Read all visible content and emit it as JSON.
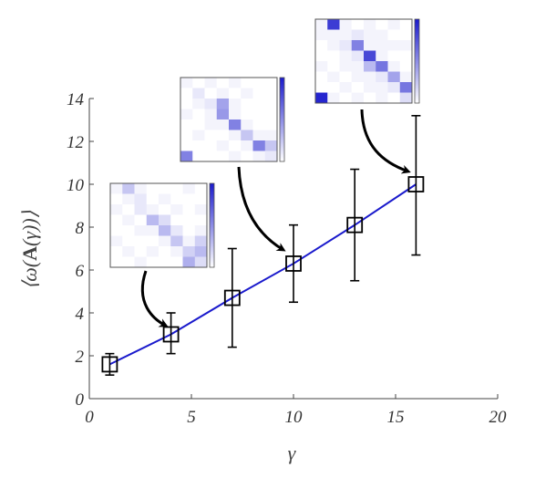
{
  "chart_data": {
    "type": "line",
    "xlabel": "γ",
    "ylabel": "⟨ω(A(γ))⟩",
    "xlim": [
      0,
      20
    ],
    "ylim": [
      0,
      14
    ],
    "xticks": [
      "0",
      "5",
      "10",
      "15",
      "20"
    ],
    "yticks": [
      "0",
      "2",
      "4",
      "6",
      "8",
      "10",
      "12",
      "14"
    ],
    "grid": false,
    "series": [
      {
        "color": "#1a1acc",
        "marker": "square",
        "points": [
          {
            "x": 1,
            "y": 1.6,
            "err_low": 1.1,
            "err_high": 2.1
          },
          {
            "x": 4,
            "y": 3.0,
            "err_low": 2.1,
            "err_high": 4.0
          },
          {
            "x": 7,
            "y": 4.7,
            "err_low": 2.4,
            "err_high": 7.0
          },
          {
            "x": 10,
            "y": 6.3,
            "err_low": 4.5,
            "err_high": 8.1
          },
          {
            "x": 13,
            "y": 8.1,
            "err_low": 5.5,
            "err_high": 10.7
          },
          {
            "x": 16,
            "y": 10.0,
            "err_low": 6.7,
            "err_high": 13.2
          }
        ]
      }
    ],
    "insets": [
      {
        "target_x": 4,
        "matrix": [
          [
            0.05,
            0.25,
            0.05,
            0.0,
            0.0,
            0.0,
            0.05,
            0.0
          ],
          [
            0.0,
            0.05,
            0.1,
            0.0,
            0.05,
            0.0,
            0.0,
            0.0
          ],
          [
            0.05,
            0.0,
            0.1,
            0.05,
            0.0,
            0.05,
            0.0,
            0.05
          ],
          [
            0.0,
            0.05,
            0.0,
            0.3,
            0.15,
            0.0,
            0.0,
            0.0
          ],
          [
            0.0,
            0.0,
            0.05,
            0.05,
            0.3,
            0.1,
            0.0,
            0.05
          ],
          [
            0.05,
            0.0,
            0.0,
            0.0,
            0.05,
            0.25,
            0.05,
            0.2
          ],
          [
            0.0,
            0.05,
            0.0,
            0.05,
            0.0,
            0.05,
            0.2,
            0.3
          ],
          [
            0.0,
            0.0,
            0.05,
            0.0,
            0.0,
            0.0,
            0.35,
            0.15
          ]
        ]
      },
      {
        "target_x": 10,
        "matrix": [
          [
            0.05,
            0.0,
            0.05,
            0.0,
            0.05,
            0.0,
            0.0,
            0.0
          ],
          [
            0.0,
            0.1,
            0.0,
            0.05,
            0.0,
            0.05,
            0.0,
            0.0
          ],
          [
            0.0,
            0.05,
            0.1,
            0.4,
            0.05,
            0.0,
            0.0,
            0.0
          ],
          [
            0.05,
            0.0,
            0.05,
            0.45,
            0.05,
            0.0,
            0.0,
            0.0
          ],
          [
            0.0,
            0.0,
            0.05,
            0.05,
            0.55,
            0.05,
            0.0,
            0.0
          ],
          [
            0.0,
            0.05,
            0.0,
            0.0,
            0.05,
            0.25,
            0.05,
            0.05
          ],
          [
            0.0,
            0.0,
            0.0,
            0.05,
            0.0,
            0.05,
            0.55,
            0.25
          ],
          [
            0.55,
            0.0,
            0.0,
            0.0,
            0.05,
            0.0,
            0.05,
            0.1
          ]
        ]
      },
      {
        "target_x": 16,
        "matrix": [
          [
            0.05,
            0.85,
            0.05,
            0.0,
            0.05,
            0.0,
            0.05,
            0.0
          ],
          [
            0.05,
            0.05,
            0.05,
            0.1,
            0.05,
            0.05,
            0.0,
            0.0
          ],
          [
            0.0,
            0.05,
            0.1,
            0.55,
            0.05,
            0.05,
            0.05,
            0.05
          ],
          [
            0.0,
            0.0,
            0.05,
            0.1,
            0.8,
            0.05,
            0.0,
            0.0
          ],
          [
            0.05,
            0.0,
            0.05,
            0.05,
            0.3,
            0.6,
            0.05,
            0.0
          ],
          [
            0.0,
            0.05,
            0.0,
            0.05,
            0.05,
            0.1,
            0.4,
            0.05
          ],
          [
            0.0,
            0.0,
            0.05,
            0.0,
            0.05,
            0.05,
            0.1,
            0.6
          ],
          [
            0.95,
            0.05,
            0.0,
            0.05,
            0.0,
            0.05,
            0.0,
            0.15
          ]
        ]
      }
    ]
  }
}
